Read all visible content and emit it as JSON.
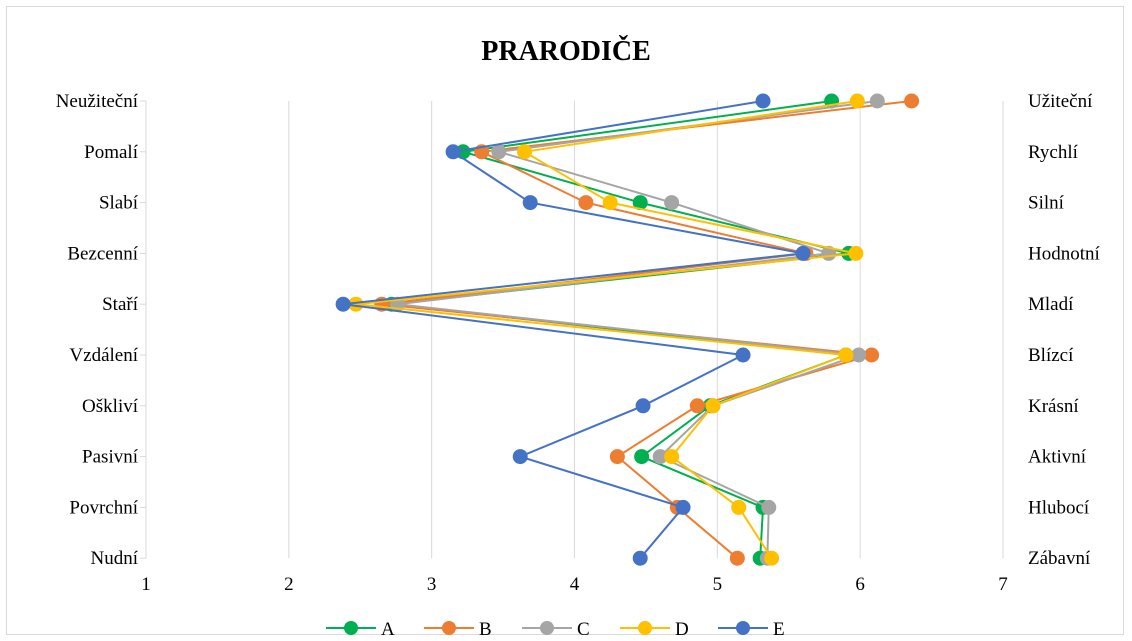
{
  "chart_data": {
    "type": "line",
    "title": "PRARODIČE",
    "orientation": "horizontal-profile",
    "xlim": [
      1,
      7
    ],
    "x_ticks": [
      "1",
      "2",
      "3",
      "4",
      "5",
      "6",
      "7"
    ],
    "left_labels": [
      "Neužiteční",
      "Pomalí",
      "Slabí",
      "Bezcenní",
      "Staří",
      "Vzdálení",
      "Oškliví",
      "Pasivní",
      "Povrchní",
      "Nudní"
    ],
    "right_labels": [
      "Užiteční",
      "Rychlí",
      "Silní",
      "Hodnotní",
      "Mladí",
      "Blízcí",
      "Krásní",
      "Aktivní",
      "Hlubocí",
      "Zábavní"
    ],
    "grid": true,
    "legend_position": "bottom",
    "series": [
      {
        "name": "A",
        "color": "#00b050",
        "values": [
          5.8,
          3.22,
          4.46,
          5.92,
          2.72,
          5.9,
          4.95,
          4.47,
          5.32,
          5.3
        ]
      },
      {
        "name": "B",
        "color": "#ed7d31",
        "values": [
          6.36,
          3.35,
          4.08,
          5.62,
          2.65,
          6.08,
          4.86,
          4.3,
          4.72,
          5.14
        ]
      },
      {
        "name": "C",
        "color": "#a5a5a5",
        "values": [
          6.12,
          3.47,
          4.68,
          5.78,
          2.76,
          5.99,
          4.97,
          4.6,
          5.36,
          5.35
        ]
      },
      {
        "name": "D",
        "color": "#ffc000",
        "values": [
          5.98,
          3.65,
          4.25,
          5.97,
          2.47,
          5.9,
          4.97,
          4.68,
          5.15,
          5.38
        ]
      },
      {
        "name": "E",
        "color": "#4472c4",
        "values": [
          5.32,
          3.15,
          3.69,
          5.6,
          2.38,
          5.18,
          4.48,
          3.62,
          4.76,
          4.46
        ]
      }
    ]
  }
}
